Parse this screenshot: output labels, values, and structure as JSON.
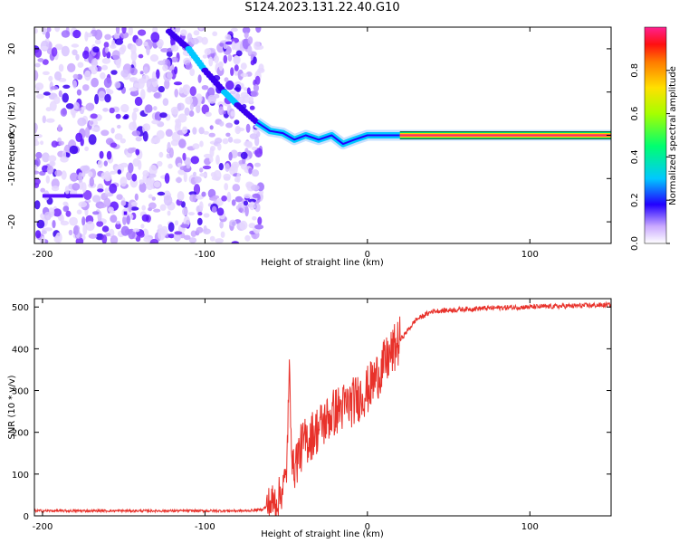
{
  "title": "S124.2023.131.22.40.G10",
  "colors": {
    "snr_line": "#e8312a",
    "spec_low": "#8a3cff",
    "spec_mid": "#00c8ff",
    "spec_high": "#ff2a6a",
    "axis": "#000000"
  },
  "chart_data": [
    {
      "type": "heatmap",
      "title": "",
      "xlabel": "Height of straight line (km)",
      "ylabel": "Frequency (Hz)",
      "xlim": [
        -205,
        150
      ],
      "ylim": [
        -25,
        25
      ],
      "xticks": [
        -200,
        -100,
        0,
        100
      ],
      "yticks": [
        -20,
        -10,
        0,
        10,
        20
      ],
      "colorbar": {
        "label": "Normalized spectral amplitude",
        "range": [
          0.0,
          1.0
        ],
        "ticks": [
          0.0,
          0.2,
          0.4,
          0.6,
          0.8
        ]
      },
      "noise_region_x": [
        -205,
        -65
      ],
      "signal_track": [
        {
          "x": -68,
          "y": 3
        },
        {
          "x": -60,
          "y": 1
        },
        {
          "x": -52,
          "y": 0.5
        },
        {
          "x": -45,
          "y": -1
        },
        {
          "x": -38,
          "y": 0
        },
        {
          "x": -30,
          "y": -1
        },
        {
          "x": -22,
          "y": 0
        },
        {
          "x": -15,
          "y": -2
        },
        {
          "x": -8,
          "y": -1
        },
        {
          "x": 0,
          "y": 0
        },
        {
          "x": 10,
          "y": 0
        },
        {
          "x": 20,
          "y": 0
        },
        {
          "x": 150,
          "y": 0
        }
      ],
      "diagonal_feature": [
        {
          "x": -122,
          "y": 24
        },
        {
          "x": -110,
          "y": 20
        },
        {
          "x": -100,
          "y": 15
        },
        {
          "x": -88,
          "y": 10
        },
        {
          "x": -80,
          "y": 7
        },
        {
          "x": -68,
          "y": 3
        }
      ]
    },
    {
      "type": "line",
      "title": "",
      "xlabel": "Height of straight line (km)",
      "ylabel": "SNR (10 * v/v)",
      "xlim": [
        -205,
        150
      ],
      "ylim": [
        0,
        520
      ],
      "xticks": [
        -200,
        -100,
        0,
        100
      ],
      "yticks": [
        0,
        100,
        200,
        300,
        400,
        500
      ],
      "series": [
        {
          "x": [
            -205,
            -150,
            -100,
            -75,
            -65,
            -55,
            -50,
            -48,
            -46,
            -40,
            -30,
            -20,
            -10,
            0,
            10,
            20,
            30,
            40,
            50,
            60,
            80,
            100,
            120,
            150
          ],
          "values": [
            12,
            12,
            12,
            12,
            15,
            40,
            90,
            340,
            110,
            170,
            210,
            250,
            270,
            300,
            360,
            420,
            470,
            490,
            492,
            495,
            498,
            500,
            502,
            505
          ]
        }
      ]
    }
  ]
}
